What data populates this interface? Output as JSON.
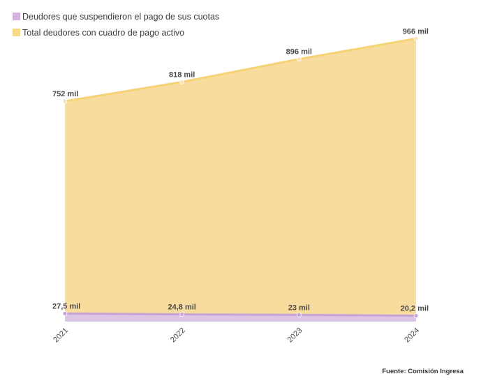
{
  "legend": {
    "items": [
      {
        "label": "Deudores que suspendieron el pago de sus cuotas",
        "color": "#d3b1dd"
      },
      {
        "label": "Total deudores con cuadro de pago activo",
        "color": "#f7d986"
      }
    ]
  },
  "source": "Fuente: Comisión Ingresa",
  "chart_data": {
    "type": "area",
    "categories": [
      "2021",
      "2022",
      "2023",
      "2024"
    ],
    "series": [
      {
        "name": "Total deudores con cuadro de pago activo",
        "values": [
          752000,
          818000,
          896000,
          966000
        ],
        "labels": [
          "752 mil",
          "818 mil",
          "896 mil",
          "966 mil"
        ],
        "fill": "#f8dc9d",
        "line": "#f6d276",
        "point": "#f3e3b8"
      },
      {
        "name": "Deudores que suspendieron el pago de sus cuotas",
        "values": [
          27500,
          24800,
          23000,
          20200
        ],
        "labels": [
          "27,5 mil",
          "24,8 mil",
          "23 mil",
          "20,2 mil"
        ],
        "fill": "#ddc5e6",
        "line": "#c6a3d6",
        "point": "#c6a3d6"
      }
    ],
    "ylim": [
      0,
      1000000
    ],
    "grid": false,
    "legend_position": "top-left"
  }
}
